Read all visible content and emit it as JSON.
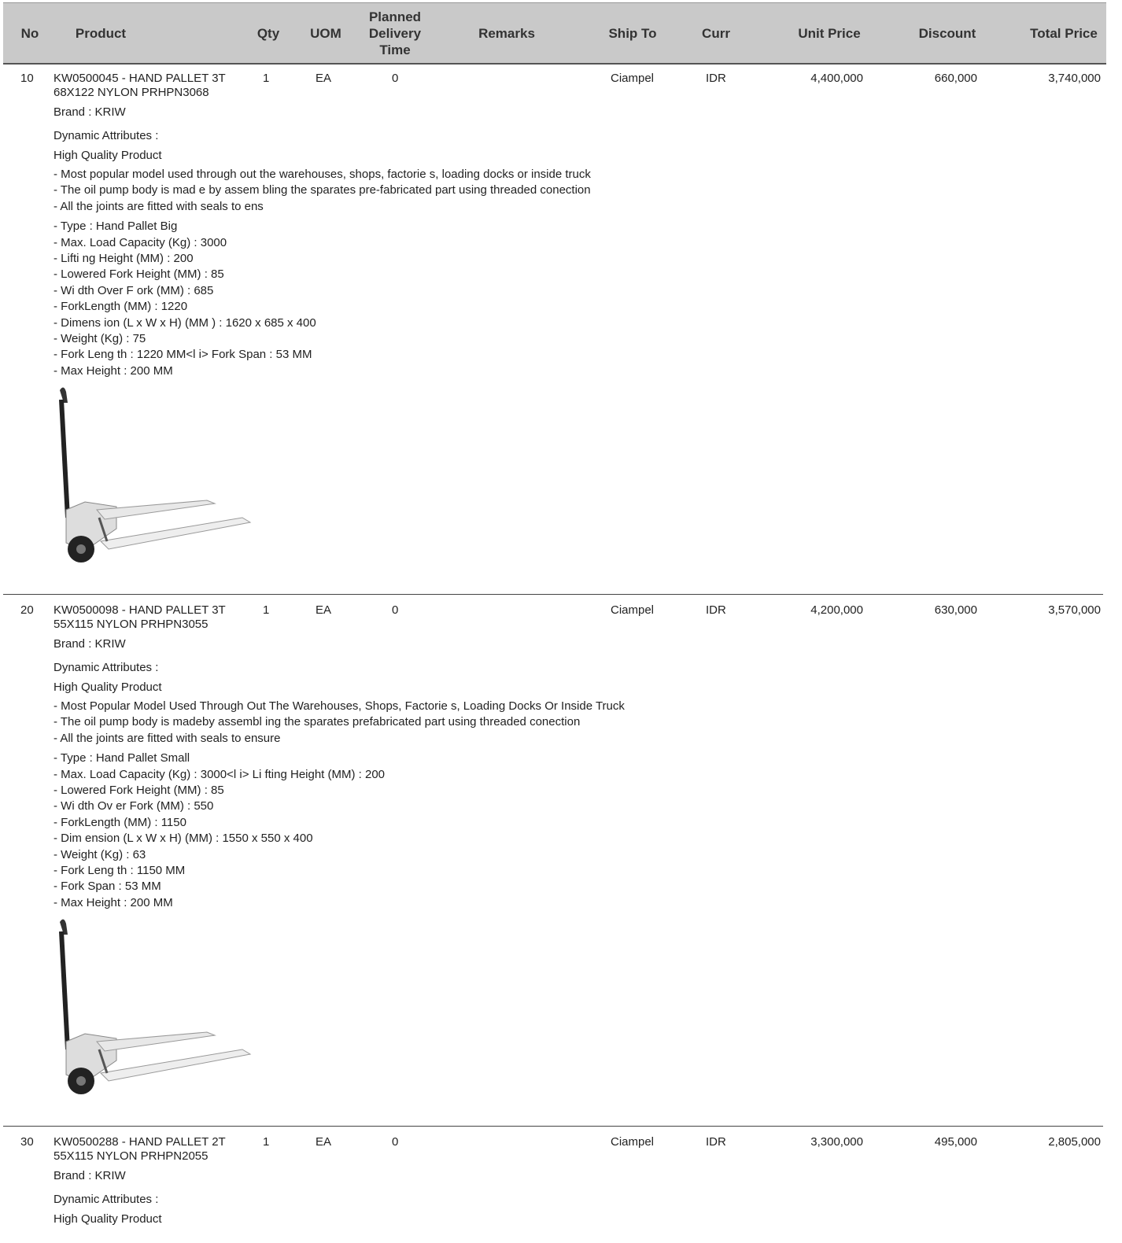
{
  "header": [
    "No",
    "Product",
    "Qty",
    "UOM",
    "Planned Delivery Time",
    "Remarks",
    "Ship To",
    "Curr",
    "Unit Price",
    "Discount",
    "Total Price"
  ],
  "rows": [
    {
      "no": "10",
      "product": "KW0500045 - HAND PALLET 3T 68X122 NYLON PRHPN3068",
      "qty": "1",
      "uom": "EA",
      "delivery": "0",
      "ship_to": "Ciampel",
      "curr": "IDR",
      "unit_price": "4,400,000",
      "discount": "660,000",
      "total_price": "3,740,000",
      "brand": "Brand : KRIW",
      "attributes": "Dynamic Attributes :",
      "quality": "High Quality Product",
      "description": [
        "- Most popular model used through out the warehouses, shops, factorie s, loading docks or inside truck",
        "- The oil pump body is mad e by assem bling the sparates pre-fabricated part using threaded conection",
        "- All the joints are fitted with seals to ens"
      ],
      "specs": [
        "- Type : Hand Pallet Big",
        "- Max. Load Capacity (Kg) : 3000",
        "- Lifti ng Height (MM) : 200",
        "- Lowered Fork Height (MM) : 85",
        "- Wi dth Over F ork (MM) : 685",
        "- ForkLength (MM) : 1220",
        "- Dimens ion (L x W x H) (MM ) : 1620 x 685 x 400",
        "- Weight (Kg) : 75",
        "- Fork Leng th : 1220 MM<l i> Fork Span : 53 MM",
        "- Max Height : 200 MM"
      ]
    },
    {
      "no": "20",
      "product": "KW0500098 - HAND PALLET 3T 55X115 NYLON PRHPN3055",
      "qty": "1",
      "uom": "EA",
      "delivery": "0",
      "ship_to": "Ciampel",
      "curr": "IDR",
      "unit_price": "4,200,000",
      "discount": "630,000",
      "total_price": "3,570,000",
      "brand": "Brand : KRIW",
      "attributes": "Dynamic Attributes :",
      "quality": "High Quality Product",
      "description": [
        "- Most Popular Model Used Through Out The Warehouses, Shops, Factorie s, Loading Docks Or Inside Truck",
        "- The oil pump body is madeby assembl ing the sparates prefabricated part using threaded conection",
        "- All the joints are fitted with seals to ensure"
      ],
      "specs": [
        "- Type : Hand Pallet Small",
        "- Max. Load Capacity (Kg) : 3000<l i> Li fting Height (MM) : 200",
        "- Lowered Fork Height (MM) : 85",
        "- Wi dth Ov er Fork (MM) : 550",
        "- ForkLength (MM) : 1150",
        "- Dim ension (L x W x H) (MM) : 1550 x 550 x 400",
        "- Weight (Kg) : 63",
        "- Fork Leng th : 1150 MM",
        "- Fork Span : 53 MM",
        "- Max Height : 200 MM"
      ]
    },
    {
      "no": "30",
      "product": "KW0500288 - HAND PALLET 2T 55X115 NYLON PRHPN2055",
      "qty": "1",
      "uom": "EA",
      "delivery": "0",
      "ship_to": "Ciampel",
      "curr": "IDR",
      "unit_price": "3,300,000",
      "discount": "495,000",
      "total_price": "2,805,000",
      "brand": "Brand : KRIW",
      "attributes": "Dynamic Attributes :",
      "quality": "High Quality Product"
    }
  ]
}
